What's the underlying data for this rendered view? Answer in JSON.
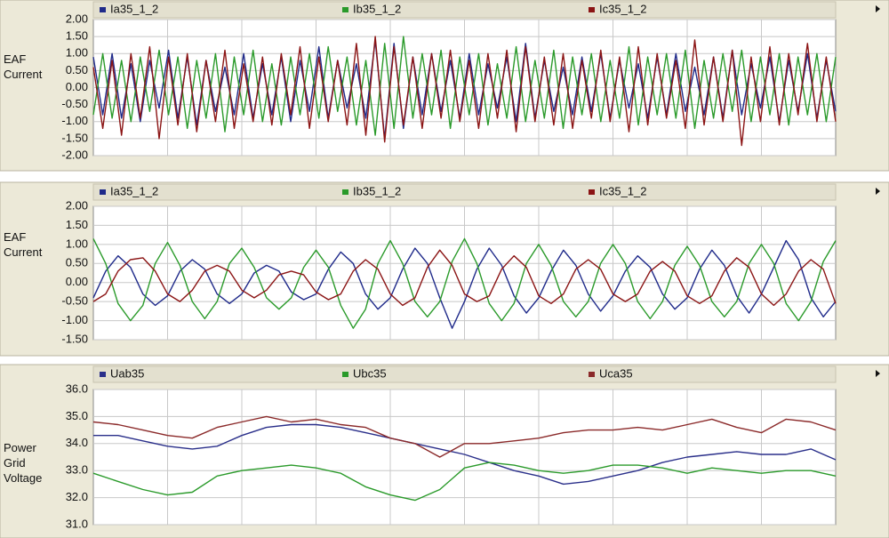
{
  "chart_data": [
    {
      "type": "line",
      "ylabel": "EAF Current",
      "legend": "top",
      "grid": true,
      "ylim": [
        -2,
        2
      ],
      "yticks": [
        {
          "value": 2,
          "label": "2.00"
        },
        {
          "value": 1.5,
          "label": "1.50"
        },
        {
          "value": 1,
          "label": "1.00"
        },
        {
          "value": 0.5,
          "label": "0.50"
        },
        {
          "value": 0,
          "label": "0.00"
        },
        {
          "value": -0.5,
          "label": "-0.50"
        },
        {
          "value": -1,
          "label": "-1.00"
        },
        {
          "value": -1.5,
          "label": "-1.50"
        },
        {
          "value": -2,
          "label": "-2.00"
        }
      ],
      "series": [
        {
          "name": "Ia35_1_2",
          "color": "#1f2a8a",
          "values": [
            0.9,
            -0.8,
            1.0,
            -0.9,
            0.7,
            -1.0,
            0.8,
            -0.6,
            1.1,
            -0.9,
            0.9,
            -1.1,
            0.8,
            -0.7,
            0.6,
            -0.8,
            1.0,
            -0.9,
            0.7,
            -0.8,
            0.9,
            -1.0,
            0.8,
            -0.7,
            1.2,
            -0.9,
            0.8,
            -0.6,
            0.7,
            -0.9,
            1.4,
            -1.5,
            1.3,
            -1.2,
            0.9,
            -0.8,
            1.0,
            -0.7,
            0.8,
            -0.9,
            1.0,
            -0.8,
            0.7,
            -0.6,
            0.9,
            -1.0,
            1.3,
            -0.9,
            0.8,
            -0.7,
            0.6,
            -0.8,
            0.9,
            -0.7,
            1.0,
            -0.9,
            0.8,
            -0.6,
            0.7,
            -0.9,
            0.9,
            -0.8,
            1.0,
            -0.7,
            0.6,
            -0.8,
            0.9,
            -0.9,
            1.1,
            -0.8,
            0.7,
            -0.6,
            0.9,
            -1.0,
            0.8,
            -0.7,
            1.0,
            -0.9,
            0.8,
            -0.7
          ]
        },
        {
          "name": "Ib35_1_2",
          "color": "#2a9a2a",
          "values": [
            -0.8,
            1.0,
            -0.9,
            0.8,
            -1.0,
            0.9,
            -0.7,
            1.1,
            -0.8,
            0.9,
            -1.2,
            0.8,
            -0.9,
            1.0,
            -1.3,
            0.9,
            -0.8,
            1.1,
            -1.0,
            0.7,
            -1.1,
            0.9,
            -0.8,
            1.0,
            -0.9,
            1.2,
            -0.7,
            0.9,
            -1.1,
            0.8,
            -1.4,
            1.3,
            -1.2,
            1.5,
            -0.9,
            1.0,
            -0.8,
            1.1,
            -1.2,
            0.9,
            -0.8,
            1.0,
            -1.1,
            0.7,
            -0.9,
            1.2,
            -1.0,
            0.8,
            -0.9,
            1.1,
            -1.2,
            0.9,
            -0.8,
            1.0,
            -1.0,
            0.8,
            -0.9,
            1.2,
            -1.1,
            0.9,
            -0.8,
            1.0,
            -0.9,
            1.1,
            -1.2,
            0.8,
            -0.9,
            1.0,
            -0.7,
            1.1,
            -1.0,
            0.9,
            -0.8,
            1.0,
            -1.1,
            0.9,
            -0.8,
            1.0,
            -1.0,
            0.9
          ]
        },
        {
          "name": "Ic35_1_2",
          "color": "#8b1414",
          "values": [
            0.6,
            -1.2,
            0.8,
            -1.4,
            1.0,
            -0.9,
            1.2,
            -1.5,
            0.9,
            -1.1,
            1.0,
            -1.3,
            0.8,
            -1.0,
            1.1,
            -1.2,
            0.7,
            -1.0,
            0.9,
            -1.1,
            1.0,
            -0.8,
            1.2,
            -1.2,
            0.9,
            -1.0,
            0.8,
            -1.1,
            1.3,
            -1.4,
            1.5,
            -1.6,
            1.2,
            -1.1,
            0.9,
            -1.2,
            1.0,
            -0.9,
            1.1,
            -1.0,
            0.8,
            -1.2,
            1.0,
            -0.9,
            1.1,
            -1.3,
            1.2,
            -1.0,
            0.9,
            -1.1,
            1.0,
            -1.2,
            0.8,
            -0.9,
            1.1,
            -1.0,
            0.9,
            -1.3,
            1.2,
            -1.1,
            1.0,
            -0.9,
            0.8,
            -1.2,
            1.4,
            -1.1,
            0.9,
            -1.0,
            1.1,
            -1.7,
            0.9,
            -1.0,
            1.2,
            -1.1,
            1.0,
            -0.8,
            1.3,
            -1.0,
            0.9,
            -1.0
          ]
        }
      ]
    },
    {
      "type": "line",
      "ylabel": "EAF Current",
      "legend": "top",
      "grid": true,
      "ylim": [
        -1.5,
        2
      ],
      "yticks": [
        {
          "value": 2,
          "label": "2.00"
        },
        {
          "value": 1.5,
          "label": "1.50"
        },
        {
          "value": 1,
          "label": "1.00"
        },
        {
          "value": 0.5,
          "label": "0.50"
        },
        {
          "value": 0,
          "label": "0.00"
        },
        {
          "value": -0.5,
          "label": "-0.50"
        },
        {
          "value": -1,
          "label": "-1.00"
        },
        {
          "value": -1.5,
          "label": "-1.50"
        }
      ],
      "series": [
        {
          "name": "Ia35_1_2",
          "color": "#1f2a8a",
          "values": [
            -0.4,
            0.3,
            0.7,
            0.4,
            -0.3,
            -0.6,
            -0.35,
            0.3,
            0.6,
            0.35,
            -0.3,
            -0.55,
            -0.3,
            0.25,
            0.45,
            0.3,
            -0.25,
            -0.45,
            -0.3,
            0.35,
            0.8,
            0.5,
            -0.3,
            -0.7,
            -0.4,
            0.35,
            0.9,
            0.5,
            -0.4,
            -1.2,
            -0.5,
            0.35,
            0.9,
            0.45,
            -0.35,
            -0.8,
            -0.4,
            0.3,
            0.85,
            0.45,
            -0.3,
            -0.75,
            -0.35,
            0.3,
            0.7,
            0.4,
            -0.3,
            -0.7,
            -0.4,
            0.35,
            0.85,
            0.45,
            -0.35,
            -0.8,
            -0.3,
            0.4,
            1.1,
            0.6,
            -0.4,
            -0.9,
            -0.5
          ]
        },
        {
          "name": "Ib35_1_2",
          "color": "#2a9a2a",
          "values": [
            1.15,
            0.5,
            -0.55,
            -1.0,
            -0.6,
            0.5,
            1.05,
            0.45,
            -0.5,
            -0.95,
            -0.5,
            0.5,
            0.9,
            0.4,
            -0.4,
            -0.7,
            -0.4,
            0.4,
            0.85,
            0.4,
            -0.6,
            -1.2,
            -0.7,
            0.5,
            1.1,
            0.5,
            -0.5,
            -0.9,
            -0.5,
            0.55,
            1.15,
            0.5,
            -0.55,
            -1.0,
            -0.55,
            0.5,
            1.0,
            0.45,
            -0.5,
            -0.9,
            -0.5,
            0.5,
            1.0,
            0.5,
            -0.5,
            -0.95,
            -0.5,
            0.45,
            0.95,
            0.45,
            -0.5,
            -0.9,
            -0.5,
            0.5,
            1.0,
            0.5,
            -0.55,
            -1.0,
            -0.5,
            0.55,
            1.1
          ]
        },
        {
          "name": "Ic35_1_2",
          "color": "#8b1414",
          "values": [
            -0.5,
            -0.3,
            0.3,
            0.6,
            0.65,
            0.3,
            -0.3,
            -0.5,
            -0.2,
            0.3,
            0.45,
            0.3,
            -0.2,
            -0.4,
            -0.2,
            0.2,
            0.3,
            0.2,
            -0.25,
            -0.45,
            -0.3,
            0.3,
            0.6,
            0.35,
            -0.3,
            -0.6,
            -0.4,
            0.4,
            0.85,
            0.45,
            -0.3,
            -0.5,
            -0.35,
            0.35,
            0.7,
            0.4,
            -0.35,
            -0.55,
            -0.3,
            0.35,
            0.6,
            0.35,
            -0.3,
            -0.5,
            -0.3,
            0.3,
            0.55,
            0.3,
            -0.35,
            -0.55,
            -0.35,
            0.3,
            0.65,
            0.4,
            -0.3,
            -0.6,
            -0.3,
            0.3,
            0.6,
            0.35,
            -0.55
          ]
        }
      ]
    },
    {
      "type": "line",
      "ylabel": "Power Grid Voltage",
      "legend": "top",
      "grid": true,
      "ylim": [
        31,
        36
      ],
      "yticks": [
        {
          "value": 36,
          "label": "36.0"
        },
        {
          "value": 35,
          "label": "35.0"
        },
        {
          "value": 34,
          "label": "34.0"
        },
        {
          "value": 33,
          "label": "33.0"
        },
        {
          "value": 32,
          "label": "32.0"
        },
        {
          "value": 31,
          "label": "31.0"
        }
      ],
      "series": [
        {
          "name": "Uab35",
          "color": "#2a2f8a",
          "values": [
            34.3,
            34.3,
            34.1,
            33.9,
            33.8,
            33.9,
            34.3,
            34.6,
            34.7,
            34.7,
            34.6,
            34.4,
            34.2,
            34.0,
            33.8,
            33.6,
            33.3,
            33.0,
            32.8,
            32.5,
            32.6,
            32.8,
            33.0,
            33.3,
            33.5,
            33.6,
            33.7,
            33.6,
            33.6,
            33.8,
            33.4
          ]
        },
        {
          "name": "Ubc35",
          "color": "#2a9a2a",
          "values": [
            32.9,
            32.6,
            32.3,
            32.1,
            32.2,
            32.8,
            33.0,
            33.1,
            33.2,
            33.1,
            32.9,
            32.4,
            32.1,
            31.9,
            32.3,
            33.1,
            33.3,
            33.2,
            33.0,
            32.9,
            33.0,
            33.2,
            33.2,
            33.1,
            32.9,
            33.1,
            33.0,
            32.9,
            33.0,
            33.0,
            32.8
          ]
        },
        {
          "name": "Uca35",
          "color": "#8b2a2a",
          "values": [
            34.8,
            34.7,
            34.5,
            34.3,
            34.2,
            34.6,
            34.8,
            35.0,
            34.8,
            34.9,
            34.7,
            34.6,
            34.2,
            34.0,
            33.5,
            34.0,
            34.0,
            34.1,
            34.2,
            34.4,
            34.5,
            34.5,
            34.6,
            34.5,
            34.7,
            34.9,
            34.6,
            34.4,
            34.9,
            34.8,
            34.5
          ]
        }
      ]
    }
  ]
}
